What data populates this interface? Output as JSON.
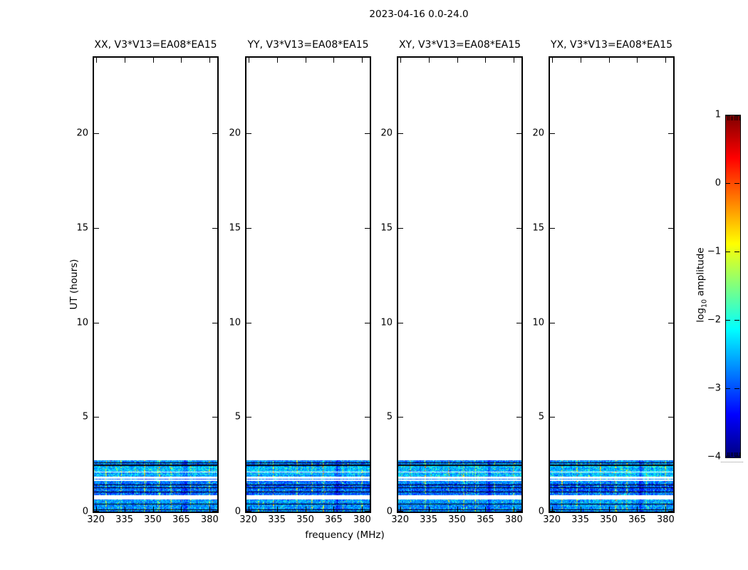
{
  "colors": {
    "background": "#ffffff",
    "foreground": "#000000",
    "spectrogram_low": "#000080",
    "spectrogram_high": "#800000"
  },
  "chart_data": {
    "type": "heatmap",
    "title": "2023-04-16 0.0-24.0",
    "xlabel": "frequency (MHz)",
    "ylabel": "UT (hours)",
    "xlim": [
      319,
      384
    ],
    "ylim": [
      0,
      24
    ],
    "xticks": [
      320,
      335,
      350,
      365,
      380
    ],
    "xtick_labels": [
      "320",
      "335",
      "350",
      "365",
      "380"
    ],
    "yticks": [
      0,
      5,
      10,
      15,
      20
    ],
    "ytick_labels": [
      "0",
      "5",
      "10",
      "15",
      "20"
    ],
    "grid": false,
    "panels": [
      {
        "pol": "XX",
        "title": "XX, V3*V13=EA08*EA15"
      },
      {
        "pol": "YY",
        "title": "YY, V3*V13=EA08*EA15"
      },
      {
        "pol": "XY",
        "title": "XY, V3*V13=EA08*EA15"
      },
      {
        "pol": "YX",
        "title": "YX, V3*V13=EA08*EA15"
      }
    ],
    "colorbar": {
      "label_pre": "log",
      "label_sub": "10",
      "label_post": " amplitude",
      "colormap": "jet",
      "clim": [
        -4,
        1
      ],
      "ticks": [
        1,
        0,
        -1,
        -2,
        -3,
        -4
      ],
      "tick_labels": [
        "1",
        "0",
        "−1",
        "−2",
        "−3",
        "−4"
      ]
    },
    "spectrogram": {
      "occupied_hours": [
        0.0,
        2.7
      ],
      "base_log10_amplitude": -2.95,
      "segments": [
        {
          "h0": 0.0,
          "h1": 0.06,
          "kind": "data",
          "boost": 0.15
        },
        {
          "h0": 0.06,
          "h1": 0.1,
          "kind": "line"
        },
        {
          "h0": 0.1,
          "h1": 0.37,
          "kind": "data",
          "boost": 0.2
        },
        {
          "h0": 0.37,
          "h1": 0.41,
          "kind": "line"
        },
        {
          "h0": 0.41,
          "h1": 0.63,
          "kind": "data",
          "boost": 0.25
        },
        {
          "h0": 0.63,
          "h1": 0.86,
          "kind": "gap"
        },
        {
          "h0": 0.86,
          "h1": 1.02,
          "kind": "data",
          "boost": 0.0
        },
        {
          "h0": 1.02,
          "h1": 1.06,
          "kind": "line"
        },
        {
          "h0": 1.06,
          "h1": 1.24,
          "kind": "data",
          "boost": 0.0
        },
        {
          "h0": 1.24,
          "h1": 1.28,
          "kind": "line"
        },
        {
          "h0": 1.28,
          "h1": 1.41,
          "kind": "data",
          "boost": 0.0
        },
        {
          "h0": 1.41,
          "h1": 1.45,
          "kind": "line"
        },
        {
          "h0": 1.45,
          "h1": 1.61,
          "kind": "data",
          "boost": 0.1
        },
        {
          "h0": 1.61,
          "h1": 1.71,
          "kind": "gap"
        },
        {
          "h0": 1.71,
          "h1": 1.75,
          "kind": "data",
          "boost": 0.1
        },
        {
          "h0": 1.75,
          "h1": 1.85,
          "kind": "gap"
        },
        {
          "h0": 1.85,
          "h1": 2.06,
          "kind": "data",
          "boost": 0.4
        },
        {
          "h0": 2.06,
          "h1": 2.1,
          "kind": "gap"
        },
        {
          "h0": 2.1,
          "h1": 2.43,
          "kind": "data",
          "boost": 0.45
        },
        {
          "h0": 2.43,
          "h1": 2.47,
          "kind": "line"
        },
        {
          "h0": 2.47,
          "h1": 2.56,
          "kind": "data",
          "boost": 0.15
        },
        {
          "h0": 2.56,
          "h1": 2.59,
          "kind": "line"
        },
        {
          "h0": 2.59,
          "h1": 2.7,
          "kind": "data",
          "boost": 0.15
        }
      ],
      "rfi_lines_mhz": [
        325.3,
        333.2,
        345.8,
        353.5,
        359.5,
        369.9,
        379.7
      ],
      "dark_band_mhz": 367
    }
  }
}
